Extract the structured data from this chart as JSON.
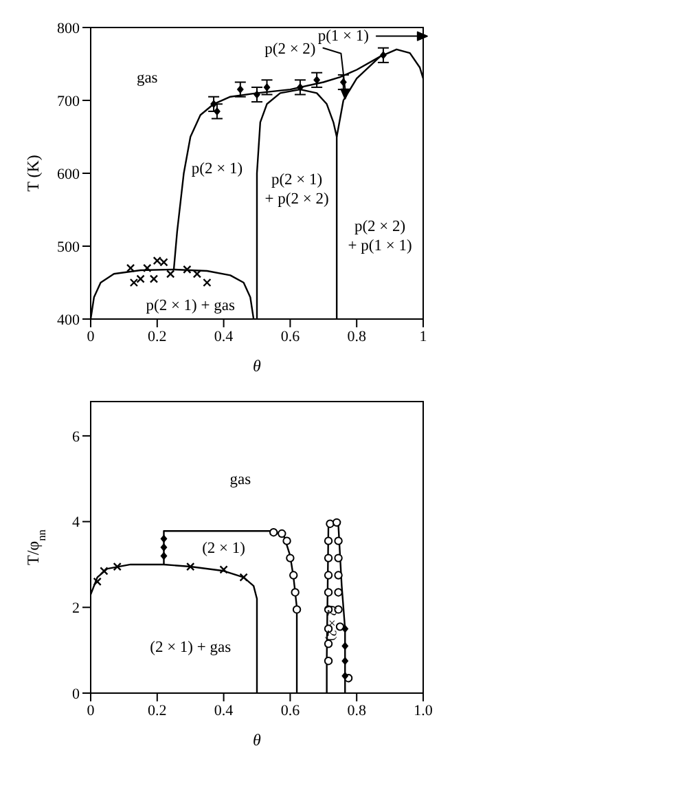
{
  "chart_data": [
    {
      "type": "line",
      "xlabel": "θ",
      "ylabel": "T (K)",
      "xlim": [
        0,
        1
      ],
      "ylim": [
        400,
        800
      ],
      "xticks": [
        0,
        0.2,
        0.4,
        0.6,
        0.8,
        1
      ],
      "yticks": [
        400,
        500,
        600,
        700,
        800
      ],
      "grid": false,
      "series": [
        {
          "color": "#000000",
          "x": [
            0,
            0.01,
            0.03,
            0.07,
            0.15,
            0.25,
            0.35,
            0.42,
            0.46,
            0.48,
            0.49
          ],
          "values": [
            400,
            430,
            450,
            462,
            467,
            468,
            466,
            460,
            450,
            430,
            400
          ]
        },
        {
          "color": "#000000",
          "x": [
            0.25,
            0.26,
            0.28,
            0.3,
            0.33,
            0.37,
            0.42,
            0.5,
            0.6,
            0.7,
            0.75,
            0.8,
            0.87
          ],
          "values": [
            468,
            520,
            600,
            650,
            680,
            695,
            705,
            710,
            715,
            725,
            732,
            742,
            760
          ]
        },
        {
          "color": "#000000",
          "x": [
            0.5,
            0.5,
            0.51,
            0.53,
            0.57,
            0.63,
            0.68,
            0.71,
            0.73,
            0.74,
            0.74
          ],
          "values": [
            400,
            600,
            670,
            695,
            710,
            715,
            710,
            695,
            670,
            650,
            400
          ]
        },
        {
          "color": "#000000",
          "x": [
            0.74,
            0.76,
            0.8,
            0.87,
            0.92,
            0.96,
            0.99,
            1
          ],
          "values": [
            650,
            700,
            730,
            760,
            770,
            765,
            745,
            730
          ]
        },
        {
          "type": "scatter",
          "marker": "cross",
          "color": "#000000",
          "x": [
            0.12,
            0.13,
            0.15,
            0.17,
            0.19,
            0.2,
            0.22,
            0.24,
            0.29,
            0.32,
            0.35
          ],
          "values": [
            470,
            450,
            455,
            470,
            455,
            480,
            478,
            462,
            468,
            462,
            450
          ]
        },
        {
          "type": "scatter",
          "marker": "diamond",
          "color": "#000000",
          "x": [
            0.37,
            0.38,
            0.45,
            0.5,
            0.53,
            0.63,
            0.68,
            0.76,
            0.88
          ],
          "values": [
            695,
            685,
            715,
            708,
            718,
            718,
            728,
            725,
            762
          ],
          "errors": [
            10,
            10,
            10,
            10,
            10,
            10,
            10,
            10,
            10
          ]
        }
      ],
      "annotations": [
        "gas",
        "p(2 × 1)",
        "p(2 × 1)\n+ p(2 × 2)",
        "p(2 × 2)\n+ p(1 × 1)",
        "p(2 × 1) + gas",
        "p(2 × 2)",
        "p(1 × 1)"
      ]
    },
    {
      "type": "line",
      "xlabel": "θ",
      "ylabel": "T/φ$_{nn}$",
      "xlim": [
        0,
        1
      ],
      "ylim": [
        0,
        6.8
      ],
      "xticks": [
        0,
        0.2,
        0.4,
        0.6,
        0.8,
        {
          "value": 1,
          "label": "1.0"
        }
      ],
      "yticks": [
        0,
        2,
        4,
        6
      ],
      "grid": false,
      "series": [
        {
          "color": "#000000",
          "x": [
            0,
            0.02,
            0.05,
            0.12,
            0.22,
            0.3,
            0.4,
            0.46,
            0.49,
            0.5,
            0.5
          ],
          "values": [
            2.3,
            2.7,
            2.9,
            3.0,
            3.0,
            2.95,
            2.85,
            2.7,
            2.5,
            2.2,
            0
          ]
        },
        {
          "color": "#000000",
          "x": [
            0.22,
            0.22,
            0.55,
            0.58,
            0.6,
            0.61,
            0.62,
            0.62
          ],
          "values": [
            3.0,
            3.78,
            3.78,
            3.7,
            3.2,
            2.7,
            2.0,
            0
          ]
        },
        {
          "color": "#000000",
          "x": [
            0.71,
            0.71,
            0.715,
            0.73,
            0.745,
            0.755,
            0.765,
            0.765
          ],
          "values": [
            0,
            0.8,
            3.9,
            4.0,
            3.9,
            2.5,
            1.5,
            0
          ]
        },
        {
          "type": "scatter",
          "marker": "circle",
          "color": "#000000",
          "x": [
            0.55,
            0.575,
            0.59,
            0.6,
            0.61,
            0.615,
            0.62,
            0.715,
            0.715,
            0.715,
            0.715,
            0.715,
            0.715,
            0.715,
            0.715,
            0.72,
            0.74,
            0.745,
            0.745,
            0.745,
            0.745,
            0.745,
            0.75,
            0.775
          ],
          "values": [
            3.75,
            3.72,
            3.55,
            3.15,
            2.75,
            2.35,
            1.95,
            0.75,
            1.15,
            1.5,
            1.95,
            2.35,
            2.75,
            3.15,
            3.55,
            3.95,
            3.98,
            3.55,
            3.15,
            2.75,
            2.35,
            1.95,
            1.55,
            0.35
          ]
        },
        {
          "type": "scatter",
          "marker": "diamond",
          "color": "#000000",
          "x": [
            0.22,
            0.22,
            0.22,
            0.765,
            0.765,
            0.765,
            0.765
          ],
          "values": [
            3.2,
            3.4,
            3.6,
            1.5,
            1.1,
            0.75,
            0.4
          ]
        },
        {
          "type": "scatter",
          "marker": "cross",
          "color": "#000000",
          "x": [
            0.02,
            0.04,
            0.08,
            0.3,
            0.4,
            0.46
          ],
          "values": [
            2.6,
            2.85,
            2.95,
            2.95,
            2.88,
            2.7
          ]
        }
      ],
      "annotations": [
        "gas",
        "(2 × 1)",
        "(2 × 1) + gas",
        "(2 × 2)"
      ]
    }
  ]
}
